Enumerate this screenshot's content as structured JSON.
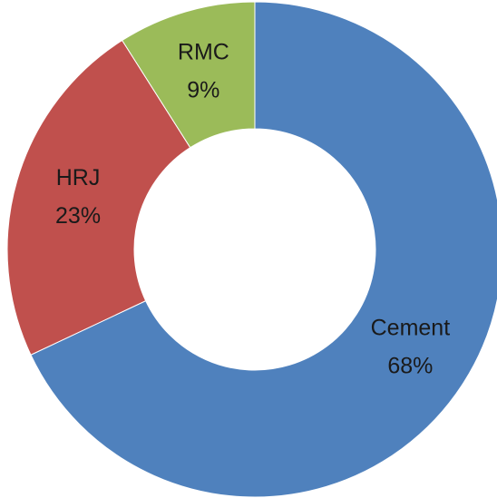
{
  "chart_data": {
    "type": "donut",
    "categories": [
      "Cement",
      "HRJ",
      "RMC"
    ],
    "values": [
      68,
      23,
      9
    ],
    "value_labels": [
      "68%",
      "23%",
      "9%"
    ],
    "colors": [
      "#4f81bd",
      "#c0504d",
      "#9bbb59"
    ]
  }
}
